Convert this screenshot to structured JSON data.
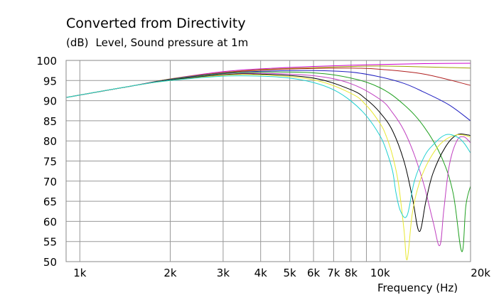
{
  "chart_data": {
    "type": "line",
    "title": "Converted from Directivity",
    "ylabel_unit": "(dB)",
    "ylabel": "Level, Sound pressure at 1m",
    "xlabel": "Frequency  (Hz)",
    "x_scale": "log",
    "xlim": [
      900,
      20000
    ],
    "ylim": [
      50,
      100
    ],
    "grid": true,
    "x_ticks": [
      {
        "value": 1000,
        "label": "1k"
      },
      {
        "value": 2000,
        "label": "2k"
      },
      {
        "value": 3000,
        "label": "3k"
      },
      {
        "value": 4000,
        "label": "4k"
      },
      {
        "value": 5000,
        "label": "5k"
      },
      {
        "value": 6000,
        "label": "6k"
      },
      {
        "value": 7000,
        "label": "7k"
      },
      {
        "value": 8000,
        "label": "8k"
      },
      {
        "value": 10000,
        "label": "10k"
      },
      {
        "value": 20000,
        "label": "20k"
      }
    ],
    "y_ticks": [
      {
        "value": 100,
        "label": "100"
      },
      {
        "value": 95,
        "label": "95"
      },
      {
        "value": 90,
        "label": "90"
      },
      {
        "value": 85,
        "label": "85"
      },
      {
        "value": 80,
        "label": "80"
      },
      {
        "value": 75,
        "label": "75"
      },
      {
        "value": 70,
        "label": "70"
      },
      {
        "value": 65,
        "label": "65"
      },
      {
        "value": 60,
        "label": "60"
      },
      {
        "value": 55,
        "label": "55"
      },
      {
        "value": 50,
        "label": "50"
      }
    ],
    "series": [
      {
        "color": "#cc00cc",
        "x": [
          900,
          1500,
          2000,
          3000,
          4000,
          6000,
          8000,
          10000,
          14000,
          20000
        ],
        "y": [
          90.8,
          93.7,
          95.4,
          97.2,
          97.9,
          98.5,
          98.8,
          99.0,
          99.2,
          99.3
        ]
      },
      {
        "color": "#a0a000",
        "x": [
          900,
          1500,
          2000,
          3000,
          4000,
          6000,
          8000,
          10000,
          14000,
          20000
        ],
        "y": [
          90.8,
          93.7,
          95.4,
          97.0,
          97.7,
          98.2,
          98.5,
          98.6,
          98.4,
          98.1
        ]
      },
      {
        "color": "#b02020",
        "x": [
          900,
          1500,
          2000,
          3000,
          4000,
          6000,
          8000,
          10000,
          14000,
          20000
        ],
        "y": [
          90.8,
          93.7,
          95.3,
          96.9,
          97.6,
          98.0,
          98.1,
          97.8,
          96.6,
          93.8
        ]
      },
      {
        "color": "#2020c0",
        "x": [
          900,
          1500,
          2000,
          3000,
          4000,
          6000,
          8000,
          10000,
          12000,
          14000,
          17000,
          20000
        ],
        "y": [
          90.8,
          93.7,
          95.3,
          96.8,
          97.3,
          97.5,
          97.1,
          95.9,
          94.3,
          92.1,
          88.9,
          85.0
        ]
      },
      {
        "color": "#20a020",
        "x": [
          900,
          1500,
          2000,
          3000,
          4000,
          6000,
          8000,
          10000,
          12000,
          14000,
          16000,
          17500,
          18700,
          19300,
          20000
        ],
        "y": [
          90.8,
          93.7,
          95.2,
          96.7,
          97.1,
          96.9,
          95.6,
          93.2,
          89.0,
          83.5,
          76.0,
          67.0,
          52.5,
          64.0,
          68.8
        ]
      },
      {
        "color": "#c040c0",
        "x": [
          900,
          1500,
          2000,
          3000,
          4000,
          6000,
          8000,
          10000,
          11000,
          12000,
          13000,
          14000,
          15000,
          15800,
          16300,
          17000,
          18000,
          19000,
          20000
        ],
        "y": [
          90.8,
          93.7,
          95.1,
          96.5,
          96.8,
          96.2,
          94.2,
          90.3,
          87.0,
          82.6,
          76.5,
          69.0,
          60.0,
          54.0,
          63.0,
          74.0,
          80.0,
          81.0,
          79.5
        ]
      },
      {
        "color": "#000000",
        "x": [
          900,
          1500,
          2000,
          3000,
          4000,
          6000,
          8000,
          9000,
          10000,
          11000,
          12000,
          12800,
          13500,
          14200,
          15000,
          16500,
          18000,
          19500,
          20000
        ],
        "y": [
          90.8,
          93.7,
          95.1,
          96.4,
          96.6,
          95.6,
          92.7,
          90.3,
          87.0,
          82.5,
          75.0,
          66.0,
          57.5,
          65.0,
          72.0,
          78.5,
          81.5,
          81.5,
          81.3
        ]
      },
      {
        "color": "#e8e830",
        "x": [
          900,
          1500,
          2000,
          3000,
          4000,
          6000,
          8000,
          9000,
          10000,
          10500,
          11000,
          11500,
          12000,
          12300,
          12800,
          13500,
          14500,
          16000,
          18000,
          20000
        ],
        "y": [
          90.8,
          93.7,
          95.0,
          96.3,
          96.4,
          95.2,
          91.8,
          88.8,
          84.3,
          81.0,
          76.3,
          69.5,
          58.0,
          50.5,
          62.0,
          69.5,
          75.0,
          79.5,
          81.5,
          81.0
        ]
      },
      {
        "color": "#20d0d0",
        "x": [
          900,
          1500,
          2000,
          3000,
          4000,
          5000,
          6000,
          7000,
          8000,
          9000,
          10000,
          10500,
          11000,
          11300,
          11700,
          12300,
          13000,
          14000,
          15000,
          16500,
          18000,
          19000,
          20000
        ],
        "y": [
          90.8,
          93.7,
          95.0,
          96.1,
          96.1,
          95.6,
          94.5,
          92.7,
          89.9,
          86.2,
          81.2,
          77.5,
          72.5,
          67.0,
          62.5,
          61.5,
          70.0,
          76.0,
          79.0,
          81.5,
          81.0,
          79.5,
          77.0
        ]
      }
    ]
  }
}
